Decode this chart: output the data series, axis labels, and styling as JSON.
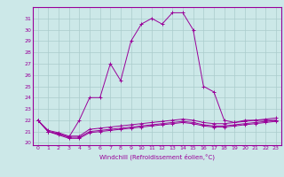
{
  "title": "",
  "xlabel": "Windchill (Refroidissement éolien,°C)",
  "bg_color": "#cce8e8",
  "grid_color": "#aacccc",
  "line_color": "#990099",
  "x": [
    0,
    1,
    2,
    3,
    4,
    5,
    6,
    7,
    8,
    9,
    10,
    11,
    12,
    13,
    14,
    15,
    16,
    17,
    18,
    19,
    20,
    21,
    22,
    23
  ],
  "y_main": [
    22.0,
    21.0,
    20.8,
    20.5,
    22.0,
    24.0,
    24.0,
    27.0,
    25.5,
    29.0,
    30.5,
    31.0,
    30.5,
    31.5,
    31.5,
    30.0,
    25.0,
    24.5,
    22.0,
    21.8,
    22.0,
    22.0,
    22.0,
    22.0
  ],
  "y_flat1": [
    22.0,
    21.0,
    20.8,
    20.5,
    20.5,
    21.0,
    21.1,
    21.2,
    21.3,
    21.4,
    21.5,
    21.6,
    21.7,
    21.8,
    21.9,
    21.8,
    21.6,
    21.5,
    21.5,
    21.6,
    21.7,
    21.8,
    21.9,
    22.0
  ],
  "y_flat2": [
    22.0,
    21.0,
    20.7,
    20.4,
    20.4,
    20.9,
    21.0,
    21.1,
    21.2,
    21.3,
    21.4,
    21.5,
    21.6,
    21.7,
    21.8,
    21.7,
    21.5,
    21.4,
    21.4,
    21.5,
    21.6,
    21.7,
    21.8,
    21.9
  ],
  "y_flat3": [
    22.0,
    21.1,
    20.9,
    20.6,
    20.6,
    21.2,
    21.3,
    21.4,
    21.5,
    21.6,
    21.7,
    21.8,
    21.9,
    22.0,
    22.1,
    22.0,
    21.8,
    21.7,
    21.7,
    21.8,
    21.9,
    22.0,
    22.1,
    22.2
  ],
  "ylim": [
    19.8,
    32.0
  ],
  "xlim": [
    -0.5,
    23.5
  ],
  "yticks": [
    20,
    21,
    22,
    23,
    24,
    25,
    26,
    27,
    28,
    29,
    30,
    31
  ],
  "xticks": [
    0,
    1,
    2,
    3,
    4,
    5,
    6,
    7,
    8,
    9,
    10,
    11,
    12,
    13,
    14,
    15,
    16,
    17,
    18,
    19,
    20,
    21,
    22,
    23
  ]
}
